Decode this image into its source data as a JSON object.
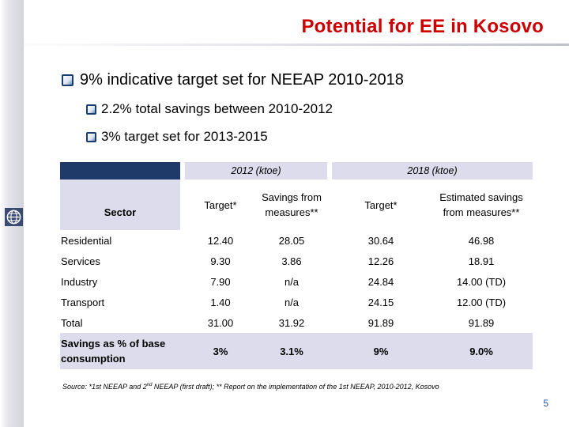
{
  "title": "Potential for EE in Kosovo",
  "bullets": {
    "main": "9% indicative target set for NEEAP 2010-2018",
    "sub1": "2.2% total savings between 2010-2012",
    "sub2": "3% target set for 2013-2015"
  },
  "table": {
    "sector_header": "Sector",
    "group_2012": "2012 (ktoe)",
    "group_2018": "2018 (ktoe)",
    "col_target_2012": "Target*",
    "col_savings_2012": "Savings from measures**",
    "col_target_2018": "Target*",
    "col_estimated_2018": "Estimated savings from measures**",
    "rows": [
      {
        "sector": "Residential",
        "t2012": "12.40",
        "s2012": "28.05",
        "t2018": "30.64",
        "e2018": "46.98"
      },
      {
        "sector": "Services",
        "t2012": "9.30",
        "s2012": "3.86",
        "t2018": "12.26",
        "e2018": "18.91"
      },
      {
        "sector": "Industry",
        "t2012": "7.90",
        "s2012": "n/a",
        "t2018": "24.84",
        "e2018": "14.00 (TD)"
      },
      {
        "sector": "Transport",
        "t2012": "1.40",
        "s2012": "n/a",
        "t2018": "24.15",
        "e2018": "12.00 (TD)"
      },
      {
        "sector": "Total",
        "t2012": "31.00",
        "s2012": "31.92",
        "t2018": "91.89",
        "e2018": "91.89"
      },
      {
        "sector": "Savings as % of base consumption",
        "t2012": "3%",
        "s2012": "3.1%",
        "t2018": "9%",
        "e2018": "9.0%"
      }
    ]
  },
  "source": {
    "prefix": "Source: *1st NEEAP and 2",
    "sup": "nd",
    "suffix": " NEEAP (first draft); ** Report on the implementation of the 1st NEEAP, 2010-2012, Kosovo"
  },
  "page_number": "5",
  "colors": {
    "title": "#cc0000",
    "header_dark": "#1f3a68",
    "header_light": "#dcdcec",
    "page_number": "#2a56a8"
  }
}
